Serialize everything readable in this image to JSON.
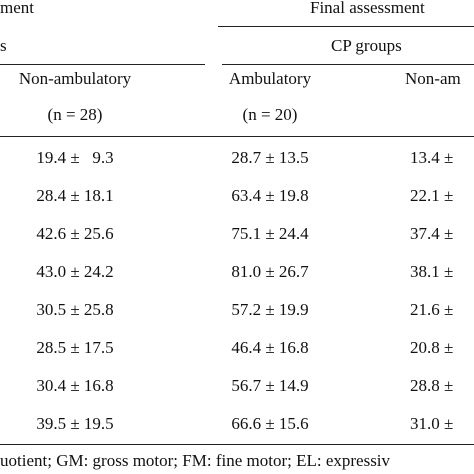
{
  "header": {
    "left_group": "ment",
    "right_group": "Final assessment",
    "left_subgroup": "s",
    "right_subgroup": "CP groups"
  },
  "columns": [
    {
      "name": "Non-ambulatory",
      "n": "(n = 28)"
    },
    {
      "name": "Ambulatory",
      "n": "(n = 20)"
    },
    {
      "name": "Non-am"
    }
  ],
  "table": {
    "rows": [
      [
        "19.4 ±   9.3",
        "28.7 ± 13.5",
        "13.4 ±"
      ],
      [
        "28.4 ± 18.1",
        "63.4 ± 19.8",
        "22.1 ±"
      ],
      [
        "42.6 ± 25.6",
        "75.1 ± 24.4",
        "37.4 ±"
      ],
      [
        "43.0 ± 24.2",
        "81.0 ± 26.7",
        "38.1 ±"
      ],
      [
        "30.5 ± 25.8",
        "57.2 ± 19.9",
        "21.6 ±"
      ],
      [
        "28.5 ± 17.5",
        "46.4 ± 16.8",
        "20.8 ±"
      ],
      [
        "30.4 ± 16.8",
        "56.7 ± 14.9",
        "28.8 ±"
      ],
      [
        "39.5 ± 19.5",
        "66.6 ± 15.6",
        "31.0 ±"
      ]
    ]
  },
  "footnote": "uotient; GM: gross motor; FM: fine motor; EL: expressiv"
}
